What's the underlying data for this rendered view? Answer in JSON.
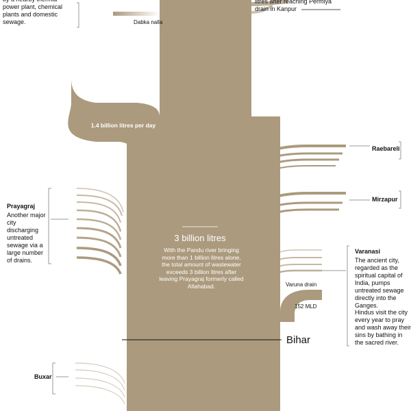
{
  "colors": {
    "river": "#ab9a7d",
    "background": "#ffffff",
    "text": "#111111",
    "bracket": "#999999"
  },
  "top_left_note": "by a nearby thermal power plant, chemical plants and domestic sewage.",
  "top_right_note": "litres after reaching Permiya drain in Kanpur",
  "dabka_label": "Dabka nalla",
  "flow_label": "1.4 billion litres per day",
  "raebareli": "Raebareli",
  "mirzapur": "Mirzapur",
  "prayagraj": {
    "title": "Prayagraj",
    "text": "Another major city discharging untreated sewage via a large number of drains."
  },
  "center": {
    "title": "3 billion litres",
    "text": "With the Pandu river bringing more than 1 billion litres alone, the total amount of wastewater exceeds 3 billion litres after leaving Prayagraj formerly called Allahabad."
  },
  "varanasi": {
    "title": "Varanasi",
    "text1": "The ancient city, regarded as the spiritual capital of India, pumps untreated sewage directly into the Ganges.",
    "text2": "Hindus visit the city every year to pray and wash away their sins by bathing in the sacred river."
  },
  "varuna_label": "Varuna drain",
  "varuna_value": "152 MLD",
  "bihar": "Bihar",
  "buxar": "Buxar"
}
